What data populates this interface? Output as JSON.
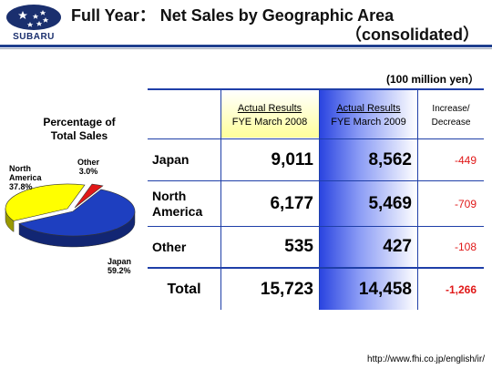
{
  "header": {
    "brand": "SUBARU",
    "title": "Full Year： Net Sales by Geographic Area",
    "subtitle": "（consolidated）"
  },
  "unit": "(100 million yen）",
  "pie": {
    "title_line1": "Percentage of",
    "title_line2": "Total Sales",
    "labels": {
      "north_america_line1": "North",
      "north_america_line2": "America",
      "north_america_pct": "37.8%",
      "other_line1": "Other",
      "other_pct": "3.0%",
      "japan_line1": "Japan",
      "japan_pct": "59.2%"
    }
  },
  "table": {
    "col_2008_line1": "Actual Results",
    "col_2008_line2": "FYE March 2008",
    "col_2009_line1": "Actual Results",
    "col_2009_line2": "FYE March 2009",
    "col_diff_line1": "Increase/",
    "col_diff_line2": "Decrease",
    "rows": [
      {
        "label_line1": "Japan",
        "label_line2": "",
        "fy2008": "9,011",
        "fy2009": "8,562",
        "diff": "-449"
      },
      {
        "label_line1": "North",
        "label_line2": "America",
        "fy2008": "6,177",
        "fy2009": "5,469",
        "diff": "-709"
      },
      {
        "label_line1": "Other",
        "label_line2": "",
        "fy2008": "535",
        "fy2009": "427",
        "diff": "-108"
      },
      {
        "label_line1": "Total",
        "label_line2": "",
        "fy2008": "15,723",
        "fy2009": "14,458",
        "diff": "-1,266"
      }
    ]
  },
  "chart_data": {
    "type": "pie",
    "title": "Percentage of Total Sales",
    "categories": [
      "Japan",
      "North America",
      "Other"
    ],
    "values": [
      59.2,
      37.8,
      3.0
    ],
    "colors": [
      "#1e3fc0",
      "#ffff00",
      "#e01818"
    ]
  },
  "footer": {
    "url": "http://www.fhi.co.jp/english/ir/"
  },
  "colors": {
    "accent_blue": "#1f3fa8",
    "highlight_yellow": "#ffff9a",
    "negative_red": "#e01818"
  }
}
